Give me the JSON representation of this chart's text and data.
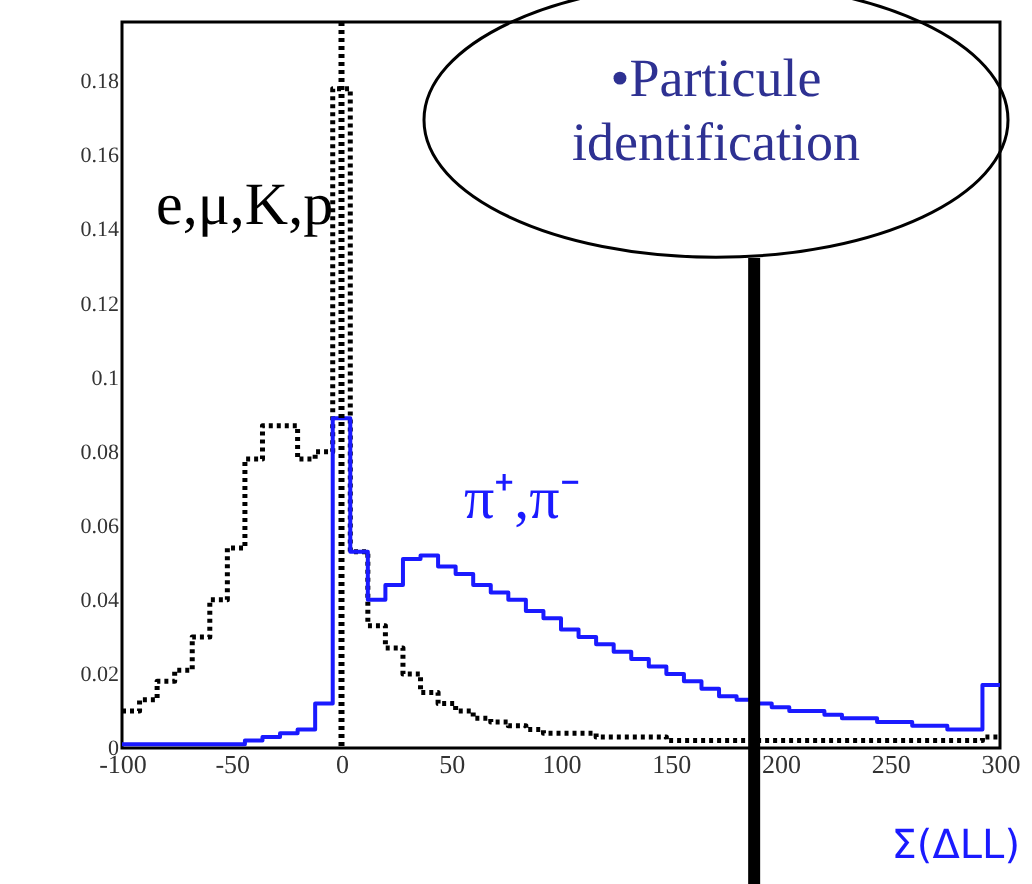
{
  "chart_data": {
    "type": "histogram",
    "xlabel": "Σ(ΔLL)",
    "bins": [
      -100,
      -92,
      -84,
      -76,
      -68,
      -60,
      -52,
      -44,
      -36,
      -28,
      -20,
      -12,
      -4,
      4,
      12,
      20,
      28,
      36,
      44,
      52,
      60,
      68,
      76,
      84,
      92,
      100,
      108,
      116,
      124,
      132,
      140,
      148,
      156,
      164,
      172,
      180,
      188,
      196,
      204,
      212,
      220,
      228,
      236,
      244,
      252,
      260,
      268,
      276,
      284,
      292,
      300
    ],
    "series": [
      {
        "name": "e,μ,K,p",
        "color": "#000000",
        "line_style": "dotted",
        "values": [
          0.01,
          0.013,
          0.018,
          0.021,
          0.03,
          0.04,
          0.054,
          0.078,
          0.087,
          0.087,
          0.078,
          0.08,
          0.178,
          0.053,
          0.033,
          0.027,
          0.02,
          0.015,
          0.012,
          0.01,
          0.008,
          0.007,
          0.006,
          0.005,
          0.004,
          0.004,
          0.004,
          0.003,
          0.003,
          0.003,
          0.003,
          0.002,
          0.002,
          0.002,
          0.002,
          0.002,
          0.002,
          0.002,
          0.002,
          0.002,
          0.002,
          0.002,
          0.002,
          0.002,
          0.002,
          0.002,
          0.002,
          0.002,
          0.002,
          0.003
        ]
      },
      {
        "name": "π⁺,π⁻",
        "color": "#1a1aff",
        "line_style": "solid",
        "values": [
          0.001,
          0.001,
          0.001,
          0.001,
          0.001,
          0.001,
          0.001,
          0.002,
          0.003,
          0.004,
          0.005,
          0.012,
          0.089,
          0.053,
          0.04,
          0.044,
          0.051,
          0.052,
          0.049,
          0.047,
          0.044,
          0.042,
          0.04,
          0.037,
          0.035,
          0.032,
          0.03,
          0.028,
          0.026,
          0.024,
          0.022,
          0.02,
          0.018,
          0.016,
          0.014,
          0.013,
          0.012,
          0.011,
          0.01,
          0.01,
          0.009,
          0.008,
          0.008,
          0.007,
          0.007,
          0.006,
          0.006,
          0.005,
          0.005,
          0.017
        ]
      }
    ],
    "xlim": [
      -100,
      300
    ],
    "ylim": [
      0,
      0.196
    ],
    "xticks": [
      -100,
      -50,
      0,
      50,
      100,
      150,
      200,
      250,
      300
    ],
    "yticks": [
      0,
      0.02,
      0.04,
      0.06,
      0.08,
      0.1,
      0.12,
      0.14,
      0.16,
      0.18
    ],
    "ref_lines": [
      {
        "axis": "x",
        "value": 0,
        "line_style": "dotted",
        "color": "#000000"
      },
      {
        "axis": "x",
        "value": 188,
        "line_style": "solid",
        "color": "#000000"
      }
    ],
    "annotations": [
      "•Particule identification"
    ],
    "grid": false
  }
}
